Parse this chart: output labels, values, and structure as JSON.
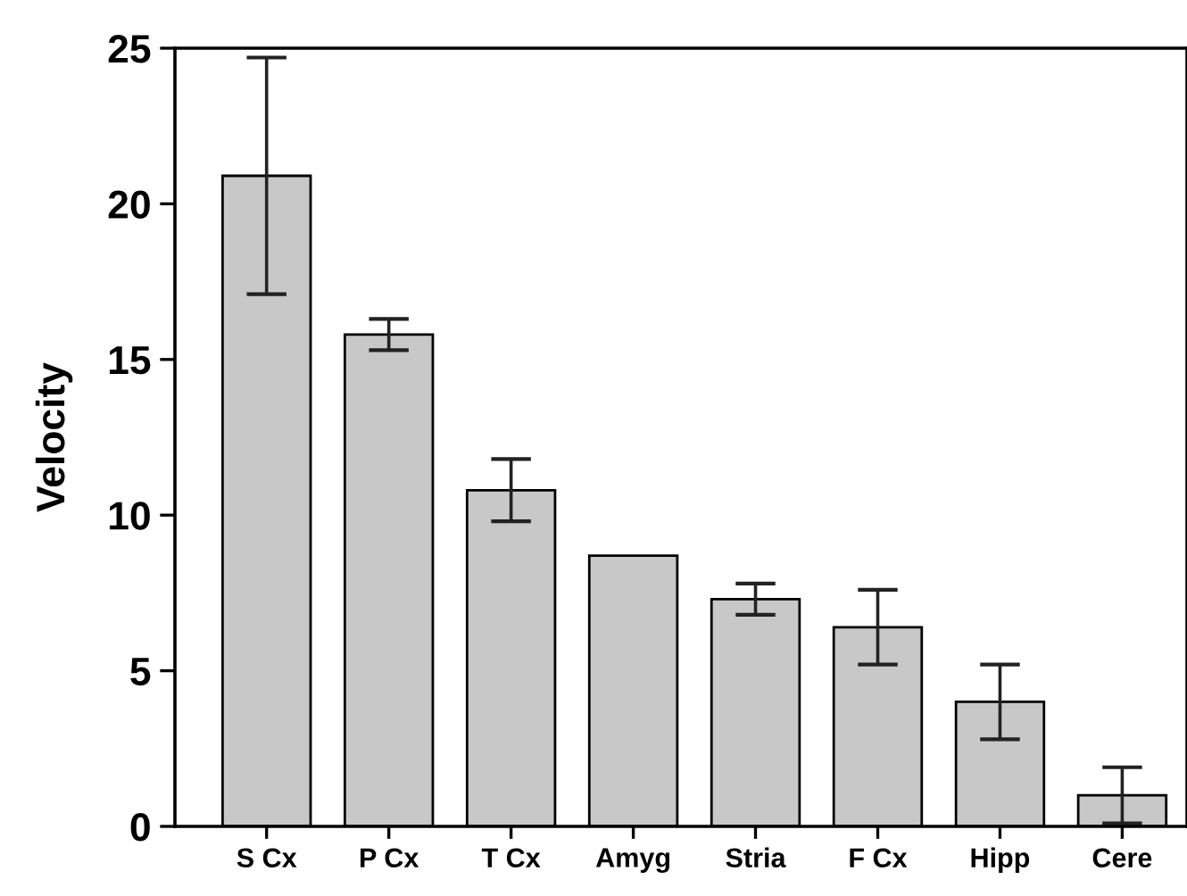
{
  "chart_data": {
    "type": "bar",
    "ylabel": "Velocity",
    "categories": [
      "S Cx",
      "P Cx",
      "T Cx",
      "Amyg",
      "Stria",
      "F Cx",
      "Hipp",
      "Cere"
    ],
    "values": [
      20.9,
      15.8,
      10.8,
      8.7,
      7.3,
      6.4,
      4.0,
      1.0
    ],
    "errors": [
      3.8,
      0.5,
      1.0,
      null,
      0.5,
      1.2,
      1.2,
      0.9
    ],
    "color": "#c8c8c8",
    "ylim": [
      0,
      25
    ],
    "yticks": [
      0,
      5,
      10,
      15,
      20,
      25
    ],
    "grid": false
  }
}
